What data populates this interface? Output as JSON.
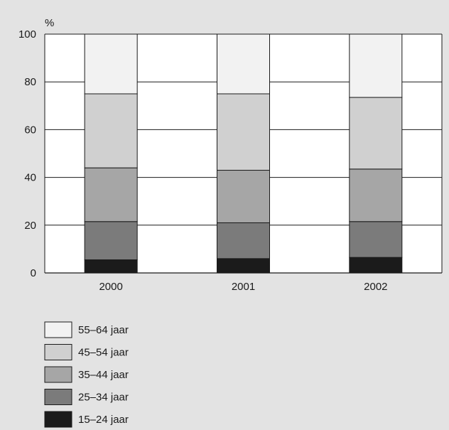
{
  "chart_data": {
    "type": "bar",
    "stacked": true,
    "unit_label": "%",
    "categories": [
      "2000",
      "2001",
      "2002"
    ],
    "ylim": [
      0,
      100
    ],
    "yticks": [
      0,
      20,
      40,
      60,
      80,
      100
    ],
    "grid": true,
    "legend_position": "bottom-left",
    "series": [
      {
        "name": "15–24 jaar",
        "color": "#1b1b1b",
        "values": [
          5.5,
          6.0,
          6.5
        ]
      },
      {
        "name": "25–34 jaar",
        "color": "#7b7b7b",
        "values": [
          16.0,
          15.0,
          15.0
        ]
      },
      {
        "name": "35–44 jaar",
        "color": "#a6a6a6",
        "values": [
          22.5,
          22.0,
          22.0
        ]
      },
      {
        "name": "45–54 jaar",
        "color": "#d0d0d0",
        "values": [
          31.0,
          32.0,
          30.0
        ]
      },
      {
        "name": "55–64 jaar",
        "color": "#f2f2f2",
        "values": [
          25.0,
          25.0,
          26.5
        ]
      }
    ]
  }
}
